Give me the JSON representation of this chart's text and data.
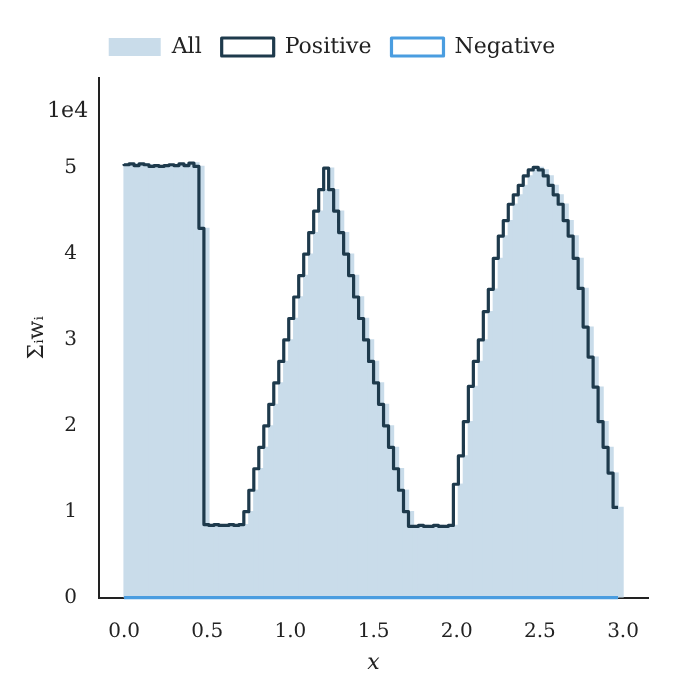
{
  "chart_data": {
    "type": "histogram",
    "xlabel": "x",
    "ylabel": "Σᵢwᵢ",
    "annotations": [
      "1e4"
    ],
    "bins": [
      0,
      0.03,
      0.06,
      0.09,
      0.12,
      0.15,
      0.18,
      0.21,
      0.24,
      0.27,
      0.3,
      0.33,
      0.36,
      0.39,
      0.42,
      0.45,
      0.48,
      0.51,
      0.54,
      0.57,
      0.6,
      0.63,
      0.66,
      0.69,
      0.72,
      0.75,
      0.78,
      0.81,
      0.84,
      0.87,
      0.9,
      0.93,
      0.96,
      0.99,
      1.02,
      1.05,
      1.08,
      1.11,
      1.14,
      1.17,
      1.2,
      1.23,
      1.26,
      1.29,
      1.32,
      1.35,
      1.38,
      1.41,
      1.44,
      1.47,
      1.5,
      1.53,
      1.56,
      1.59,
      1.62,
      1.65,
      1.68,
      1.71,
      1.74,
      1.77,
      1.8,
      1.83,
      1.86,
      1.89,
      1.92,
      1.95,
      1.98,
      2.01,
      2.04,
      2.07,
      2.1,
      2.13,
      2.16,
      2.19,
      2.22,
      2.25,
      2.28,
      2.31,
      2.34,
      2.37,
      2.4,
      2.43,
      2.46,
      2.49,
      2.52,
      2.55,
      2.58,
      2.61,
      2.64,
      2.67,
      2.7,
      2.73,
      2.76,
      2.79,
      2.82,
      2.85,
      2.88,
      2.91,
      2.94,
      2.97,
      3.0
    ],
    "series": [
      {
        "name": "All",
        "type": "histogram",
        "color": "#c9dcea",
        "values": [
          5.05,
          5.04,
          5.05,
          5.03,
          5.05,
          5.04,
          5.02,
          5.03,
          5.02,
          5.03,
          5.04,
          5.03,
          5.05,
          5.03,
          5.06,
          5.02,
          4.3,
          0.85,
          0.84,
          0.85,
          0.84,
          0.84,
          0.85,
          0.84,
          0.85,
          1.0,
          1.25,
          1.5,
          1.75,
          2.0,
          2.25,
          2.5,
          2.75,
          3.0,
          3.25,
          3.5,
          3.75,
          4.0,
          4.25,
          4.5,
          4.75,
          5.0,
          4.75,
          4.5,
          4.25,
          4.0,
          3.75,
          3.5,
          3.25,
          3.0,
          2.75,
          2.5,
          2.25,
          2.0,
          1.75,
          1.5,
          1.25,
          1.0,
          0.83,
          0.83,
          0.84,
          0.83,
          0.83,
          0.84,
          0.83,
          0.83,
          0.84,
          1.32,
          1.65,
          2.05,
          2.46,
          2.75,
          3.0,
          3.33,
          3.59,
          3.95,
          4.21,
          4.39,
          4.58,
          4.69,
          4.8,
          4.91,
          4.98,
          5.01,
          4.98,
          4.91,
          4.8,
          4.69,
          4.58,
          4.39,
          4.21,
          3.95,
          3.6,
          3.15,
          2.8,
          2.45,
          2.05,
          1.75,
          1.45,
          1.05
        ]
      },
      {
        "name": "Positive",
        "type": "step",
        "x": [
          0,
          0.03,
          0.06,
          0.09,
          0.12,
          0.15,
          0.18,
          0.21,
          0.24,
          0.27,
          0.3,
          0.33,
          0.36,
          0.39,
          0.42,
          0.45,
          0.48,
          0.51,
          0.54,
          0.57,
          0.6,
          0.63,
          0.66,
          0.69,
          0.72,
          0.75,
          0.78,
          0.81,
          0.84,
          0.87,
          0.9,
          0.93,
          0.96,
          0.99,
          1.02,
          1.05,
          1.08,
          1.11,
          1.14,
          1.17,
          1.2,
          1.23,
          1.26,
          1.29,
          1.32,
          1.35,
          1.38,
          1.41,
          1.44,
          1.47,
          1.5,
          1.53,
          1.56,
          1.59,
          1.62,
          1.65,
          1.68,
          1.71,
          1.74,
          1.77,
          1.8,
          1.83,
          1.86,
          1.89,
          1.92,
          1.95,
          1.98,
          2.01,
          2.04,
          2.07,
          2.1,
          2.13,
          2.16,
          2.19,
          2.22,
          2.25,
          2.28,
          2.31,
          2.34,
          2.37,
          2.4,
          2.43,
          2.46,
          2.49,
          2.52,
          2.55,
          2.58,
          2.61,
          2.64,
          2.67,
          2.7,
          2.73,
          2.76,
          2.79,
          2.82,
          2.85,
          2.88,
          2.91,
          2.94,
          2.97
        ],
        "color": "#1e3a4c",
        "values": [
          5.05,
          5.04,
          5.05,
          5.03,
          5.05,
          5.04,
          5.02,
          5.03,
          5.02,
          5.03,
          5.04,
          5.03,
          5.05,
          5.03,
          5.06,
          5.02,
          4.3,
          0.85,
          0.84,
          0.85,
          0.84,
          0.84,
          0.85,
          0.84,
          0.85,
          1.0,
          1.25,
          1.5,
          1.75,
          2.0,
          2.25,
          2.5,
          2.75,
          3.0,
          3.25,
          3.5,
          3.75,
          4.0,
          4.25,
          4.5,
          4.75,
          5.0,
          4.75,
          4.5,
          4.25,
          4.0,
          3.75,
          3.5,
          3.25,
          3.0,
          2.75,
          2.5,
          2.25,
          2.0,
          1.75,
          1.5,
          1.25,
          1.0,
          0.83,
          0.83,
          0.84,
          0.83,
          0.83,
          0.84,
          0.83,
          0.83,
          0.84,
          1.32,
          1.65,
          2.05,
          2.46,
          2.75,
          3.0,
          3.33,
          3.59,
          3.95,
          4.21,
          4.39,
          4.58,
          4.69,
          4.8,
          4.91,
          4.98,
          5.01,
          4.98,
          4.91,
          4.8,
          4.69,
          4.58,
          4.39,
          4.21,
          3.95,
          3.6,
          3.15,
          2.8,
          2.45,
          2.05,
          1.75,
          1.45,
          1.05
        ]
      },
      {
        "name": "Negative",
        "type": "step",
        "x": [
          0,
          0.03,
          0.06,
          0.09,
          0.12,
          0.15,
          0.18,
          0.21,
          0.24,
          0.27,
          0.3,
          0.33,
          0.36,
          0.39,
          0.42,
          0.45,
          0.48,
          0.51,
          0.54,
          0.57,
          0.6,
          0.63,
          0.66,
          0.69,
          0.72,
          0.75,
          0.78,
          0.81,
          0.84,
          0.87,
          0.9,
          0.93,
          0.96,
          0.99,
          1.02,
          1.05,
          1.08,
          1.11,
          1.14,
          1.17,
          1.2,
          1.23,
          1.26,
          1.29,
          1.32,
          1.35,
          1.38,
          1.41,
          1.44,
          1.47,
          1.5,
          1.53,
          1.56,
          1.59,
          1.62,
          1.65,
          1.68,
          1.71,
          1.74,
          1.77,
          1.8,
          1.83,
          1.86,
          1.89,
          1.92,
          1.95,
          1.98,
          2.01,
          2.04,
          2.07,
          2.1,
          2.13,
          2.16,
          2.19,
          2.22,
          2.25,
          2.28,
          2.31,
          2.34,
          2.37,
          2.4,
          2.43,
          2.46,
          2.49,
          2.52,
          2.55,
          2.58,
          2.61,
          2.64,
          2.67,
          2.7,
          2.73,
          2.76,
          2.79,
          2.82,
          2.85,
          2.88,
          2.91,
          2.94,
          2.97
        ],
        "color": "#4a9de0",
        "values": [
          0,
          0,
          0,
          0,
          0,
          0,
          0,
          0,
          0,
          0,
          0,
          0,
          0,
          0,
          0,
          0,
          0,
          0,
          0,
          0,
          0,
          0,
          0,
          0,
          0,
          0,
          0,
          0,
          0,
          0,
          0,
          0,
          0,
          0,
          0,
          0,
          0,
          0,
          0,
          0,
          0,
          0,
          0,
          0,
          0,
          0,
          0,
          0,
          0,
          0,
          0,
          0,
          0,
          0,
          0,
          0,
          0,
          0,
          0,
          0,
          0,
          0,
          0,
          0,
          0,
          0,
          0,
          0,
          0,
          0,
          0,
          0,
          0,
          0,
          0,
          0,
          0,
          0,
          0,
          0,
          0,
          0,
          0,
          0,
          0,
          0,
          0,
          0,
          0,
          0,
          0,
          0,
          0,
          0,
          0,
          0,
          0,
          0,
          0,
          0
        ]
      }
    ],
    "xlim": [
      -0.15,
      3.15
    ],
    "xticks": [
      {
        "value": 0,
        "label": "0.0"
      },
      {
        "value": 0.5,
        "label": "0.5"
      },
      {
        "value": 1,
        "label": "1.0"
      },
      {
        "value": 1.5,
        "label": "1.5"
      },
      {
        "value": 2,
        "label": "2.0"
      },
      {
        "value": 2.5,
        "label": "2.5"
      },
      {
        "value": 3,
        "label": "3.0"
      }
    ],
    "ylim": [
      0,
      6.05
    ],
    "yticks": [
      0,
      1,
      2,
      3,
      4,
      5
    ],
    "legend": "top",
    "grid": false
  }
}
